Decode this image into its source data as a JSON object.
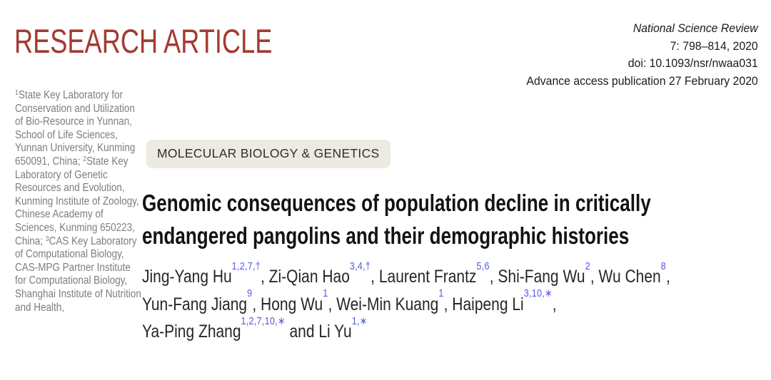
{
  "colors": {
    "accent_red": "#a43a31",
    "superscript_blue": "#5757ec",
    "sidebar_gray": "#7d7d7d",
    "badge_background": "#edeae1",
    "text_ink": "#161616"
  },
  "masthead": {
    "article_type": "RESEARCH ARTICLE",
    "journal_name": "National Science Review",
    "volume_pages": "7: 798–814, 2020",
    "doi": "doi: 10.1093/nsr/nwaa031",
    "advance_access": "Advance access publication 27 February 2020"
  },
  "category_badge": {
    "label": "MOLECULAR BIOLOGY & GENETICS"
  },
  "article": {
    "title": "Genomic consequences of population decline in critically endangered pangolins and their demographic histories",
    "title_lines": [
      "Genomic consequences of population decline in critically",
      "endangered pangolins and their demographic histories"
    ],
    "author_lines": [
      [
        {
          "name": "Jing-Yang Hu",
          "sup": "1,2,7,†",
          "after": ", "
        },
        {
          "name": "Zi-Qian Hao",
          "sup": "3,4,†",
          "after": ", "
        },
        {
          "name": "Laurent Frantz",
          "sup": "5,6",
          "after": ", "
        },
        {
          "name": "Shi-Fang Wu",
          "sup": "2",
          "after": ", "
        },
        {
          "name": "Wu Chen",
          "sup": "8",
          "after": ","
        }
      ],
      [
        {
          "name": "Yun-Fang Jiang",
          "sup": "9",
          "after": ", "
        },
        {
          "name": "Hong Wu",
          "sup": "1",
          "after": ", "
        },
        {
          "name": "Wei-Min Kuang",
          "sup": "1",
          "after": ", "
        },
        {
          "name": "Haipeng Li",
          "sup": "3,10,∗",
          "after": ","
        }
      ],
      [
        {
          "name": "Ya-Ping Zhang",
          "sup": "1,2,7,10,∗",
          "after": " and "
        },
        {
          "name": "Li Yu",
          "sup": "1,∗",
          "after": ""
        }
      ]
    ]
  },
  "affiliations": {
    "segments": [
      {
        "sup": "1",
        "text": "State Key Laboratory for Conservation and Utilization of Bio-Resource in Yunnan, School of Life Sciences, Yunnan University, Kunming 650091, China; "
      },
      {
        "sup": "2",
        "text": "State Key Laboratory of Genetic Resources and Evolution, Kunming Institute of Zoology, Chinese Academy of Sciences, Kunming 650223, China; "
      },
      {
        "sup": "3",
        "text": "CAS Key Laboratory of Computational Biology, CAS-MPG Partner Institute for Computational Biology, Shanghai Institute of Nutrition and Health,"
      }
    ]
  }
}
